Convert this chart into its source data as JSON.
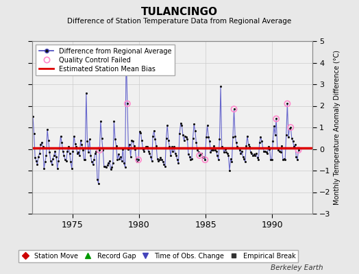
{
  "title": "TULANCINGO",
  "subtitle": "Difference of Station Temperature Data from Regional Average",
  "ylabel_right": "Monthly Temperature Anomaly Difference (°C)",
  "ylim": [
    -3,
    5
  ],
  "yticks": [
    -3,
    -2,
    -1,
    0,
    1,
    2,
    3,
    4,
    5
  ],
  "xlim_start": 1972.0,
  "xlim_end": 1993.0,
  "xticks": [
    1975,
    1980,
    1985,
    1990
  ],
  "bias_value": 0.05,
  "background_color": "#e8e8e8",
  "plot_bg_color": "#f0f0f0",
  "line_color": "#6666cc",
  "dot_color": "#111111",
  "bias_color": "#dd0000",
  "qc_color": "#ff88cc",
  "berkeley_earth_text": "Berkeley Earth",
  "legend1_items": [
    {
      "label": "Difference from Regional Average",
      "color": "#4444bb",
      "markercolor": "#111111"
    },
    {
      "label": "Quality Control Failed",
      "markercolor": "#ff88cc"
    },
    {
      "label": "Estimated Station Mean Bias",
      "color": "#dd0000"
    }
  ],
  "legend2_items": [
    {
      "label": "Station Move",
      "marker": "D",
      "color": "#cc0000"
    },
    {
      "label": "Record Gap",
      "marker": "^",
      "color": "#009900"
    },
    {
      "label": "Time of Obs. Change",
      "marker": "v",
      "color": "#4444bb"
    },
    {
      "label": "Empirical Break",
      "marker": "s",
      "color": "#333333"
    }
  ],
  "data": [
    [
      1972.042,
      1.5
    ],
    [
      1972.125,
      0.7
    ],
    [
      1972.208,
      -0.4
    ],
    [
      1972.292,
      -0.55
    ],
    [
      1972.375,
      -0.7
    ],
    [
      1972.458,
      -0.35
    ],
    [
      1972.542,
      -0.2
    ],
    [
      1972.625,
      0.2
    ],
    [
      1972.708,
      0.3
    ],
    [
      1972.792,
      0.1
    ],
    [
      1972.875,
      -0.9
    ],
    [
      1972.958,
      -0.6
    ],
    [
      1973.042,
      -0.3
    ],
    [
      1973.125,
      0.9
    ],
    [
      1973.208,
      0.4
    ],
    [
      1973.292,
      -0.15
    ],
    [
      1973.375,
      -0.55
    ],
    [
      1973.458,
      -0.7
    ],
    [
      1973.542,
      -0.45
    ],
    [
      1973.625,
      -0.3
    ],
    [
      1973.708,
      -0.1
    ],
    [
      1973.792,
      -0.35
    ],
    [
      1973.875,
      -0.9
    ],
    [
      1973.958,
      -0.55
    ],
    [
      1974.042,
      0.05
    ],
    [
      1974.125,
      0.6
    ],
    [
      1974.208,
      0.3
    ],
    [
      1974.292,
      -0.1
    ],
    [
      1974.375,
      -0.3
    ],
    [
      1974.458,
      -0.5
    ],
    [
      1974.542,
      -0.55
    ],
    [
      1974.625,
      -0.1
    ],
    [
      1974.708,
      0.1
    ],
    [
      1974.792,
      -0.2
    ],
    [
      1974.875,
      -0.6
    ],
    [
      1974.958,
      -0.9
    ],
    [
      1975.042,
      -0.1
    ],
    [
      1975.125,
      0.6
    ],
    [
      1975.208,
      0.25
    ],
    [
      1975.292,
      0.1
    ],
    [
      1975.375,
      -0.2
    ],
    [
      1975.458,
      -0.15
    ],
    [
      1975.542,
      -0.3
    ],
    [
      1975.625,
      0.4
    ],
    [
      1975.708,
      0.2
    ],
    [
      1975.792,
      -0.05
    ],
    [
      1975.875,
      -0.5
    ],
    [
      1975.958,
      -0.5
    ],
    [
      1976.042,
      2.6
    ],
    [
      1976.125,
      0.35
    ],
    [
      1976.208,
      -0.15
    ],
    [
      1976.292,
      0.45
    ],
    [
      1976.375,
      -0.3
    ],
    [
      1976.458,
      -0.6
    ],
    [
      1976.542,
      -0.7
    ],
    [
      1976.625,
      -0.5
    ],
    [
      1976.708,
      -0.2
    ],
    [
      1976.792,
      -0.1
    ],
    [
      1976.875,
      -1.4
    ],
    [
      1976.958,
      -1.6
    ],
    [
      1977.042,
      -0.05
    ],
    [
      1977.125,
      1.3
    ],
    [
      1977.208,
      0.5
    ],
    [
      1977.292,
      -0.05
    ],
    [
      1977.375,
      -0.8
    ],
    [
      1977.458,
      -0.8
    ],
    [
      1977.542,
      -0.85
    ],
    [
      1977.625,
      -0.75
    ],
    [
      1977.708,
      -0.65
    ],
    [
      1977.792,
      -0.55
    ],
    [
      1977.875,
      -0.95
    ],
    [
      1977.958,
      -0.85
    ],
    [
      1978.042,
      -0.65
    ],
    [
      1978.125,
      1.3
    ],
    [
      1978.208,
      0.45
    ],
    [
      1978.292,
      0.15
    ],
    [
      1978.375,
      -0.5
    ],
    [
      1978.458,
      -0.25
    ],
    [
      1978.542,
      -0.45
    ],
    [
      1978.625,
      -0.35
    ],
    [
      1978.708,
      -0.55
    ],
    [
      1978.792,
      0.0
    ],
    [
      1978.875,
      -0.65
    ],
    [
      1978.958,
      -0.85
    ],
    [
      1979.042,
      4.5
    ],
    [
      1979.125,
      2.1
    ],
    [
      1979.208,
      0.0
    ],
    [
      1979.292,
      0.2
    ],
    [
      1979.375,
      -0.35
    ],
    [
      1979.458,
      0.4
    ],
    [
      1979.542,
      0.35
    ],
    [
      1979.625,
      0.15
    ],
    [
      1979.708,
      0.0
    ],
    [
      1979.792,
      -0.45
    ],
    [
      1979.875,
      -0.6
    ],
    [
      1979.958,
      -0.5
    ],
    [
      1980.042,
      0.8
    ],
    [
      1980.125,
      0.75
    ],
    [
      1980.208,
      0.4
    ],
    [
      1980.292,
      0.0
    ],
    [
      1980.375,
      -0.1
    ],
    [
      1980.458,
      0.05
    ],
    [
      1980.542,
      0.1
    ],
    [
      1980.625,
      0.1
    ],
    [
      1980.708,
      -0.1
    ],
    [
      1980.792,
      -0.2
    ],
    [
      1980.875,
      -0.35
    ],
    [
      1980.958,
      -0.55
    ],
    [
      1981.042,
      0.6
    ],
    [
      1981.125,
      0.85
    ],
    [
      1981.208,
      0.45
    ],
    [
      1981.292,
      0.15
    ],
    [
      1981.375,
      -0.45
    ],
    [
      1981.458,
      -0.55
    ],
    [
      1981.542,
      -0.5
    ],
    [
      1981.625,
      -0.4
    ],
    [
      1981.708,
      -0.5
    ],
    [
      1981.792,
      -0.6
    ],
    [
      1981.875,
      -0.7
    ],
    [
      1981.958,
      -0.8
    ],
    [
      1982.042,
      0.5
    ],
    [
      1982.125,
      1.1
    ],
    [
      1982.208,
      0.4
    ],
    [
      1982.292,
      0.1
    ],
    [
      1982.375,
      -0.3
    ],
    [
      1982.458,
      0.1
    ],
    [
      1982.542,
      -0.1
    ],
    [
      1982.625,
      0.1
    ],
    [
      1982.708,
      -0.2
    ],
    [
      1982.792,
      -0.3
    ],
    [
      1982.875,
      -0.5
    ],
    [
      1982.958,
      -0.65
    ],
    [
      1983.042,
      0.7
    ],
    [
      1983.125,
      1.2
    ],
    [
      1983.208,
      1.1
    ],
    [
      1983.292,
      0.65
    ],
    [
      1983.375,
      0.4
    ],
    [
      1983.458,
      0.6
    ],
    [
      1983.542,
      0.55
    ],
    [
      1983.625,
      0.45
    ],
    [
      1983.708,
      -0.25
    ],
    [
      1983.792,
      -0.35
    ],
    [
      1983.875,
      -0.5
    ],
    [
      1983.958,
      -0.45
    ],
    [
      1984.042,
      0.5
    ],
    [
      1984.125,
      1.15
    ],
    [
      1984.208,
      0.85
    ],
    [
      1984.292,
      0.3
    ],
    [
      1984.375,
      -0.05
    ],
    [
      1984.458,
      -0.15
    ],
    [
      1984.542,
      -0.3
    ],
    [
      1984.625,
      -0.25
    ],
    [
      1984.708,
      -0.2
    ],
    [
      1984.792,
      -0.4
    ],
    [
      1984.875,
      -0.35
    ],
    [
      1984.958,
      -0.5
    ],
    [
      1985.042,
      0.55
    ],
    [
      1985.125,
      1.1
    ],
    [
      1985.208,
      0.55
    ],
    [
      1985.292,
      0.35
    ],
    [
      1985.375,
      -0.15
    ],
    [
      1985.458,
      -0.05
    ],
    [
      1985.542,
      -0.05
    ],
    [
      1985.625,
      0.15
    ],
    [
      1985.708,
      -0.05
    ],
    [
      1985.792,
      -0.1
    ],
    [
      1985.875,
      -0.3
    ],
    [
      1985.958,
      -0.5
    ],
    [
      1986.042,
      0.45
    ],
    [
      1986.125,
      2.9
    ],
    [
      1986.208,
      0.1
    ],
    [
      1986.292,
      0.05
    ],
    [
      1986.375,
      -0.15
    ],
    [
      1986.458,
      0.0
    ],
    [
      1986.542,
      -0.15
    ],
    [
      1986.625,
      -0.2
    ],
    [
      1986.708,
      -0.3
    ],
    [
      1986.792,
      -1.0
    ],
    [
      1986.875,
      -0.45
    ],
    [
      1986.958,
      -0.6
    ],
    [
      1987.042,
      0.55
    ],
    [
      1987.125,
      1.85
    ],
    [
      1987.208,
      0.6
    ],
    [
      1987.292,
      0.3
    ],
    [
      1987.375,
      0.1
    ],
    [
      1987.458,
      0.05
    ],
    [
      1987.542,
      -0.05
    ],
    [
      1987.625,
      -0.2
    ],
    [
      1987.708,
      -0.1
    ],
    [
      1987.792,
      -0.35
    ],
    [
      1987.875,
      -0.45
    ],
    [
      1987.958,
      -0.6
    ],
    [
      1988.042,
      0.15
    ],
    [
      1988.125,
      0.6
    ],
    [
      1988.208,
      0.2
    ],
    [
      1988.292,
      0.1
    ],
    [
      1988.375,
      -0.15
    ],
    [
      1988.458,
      -0.2
    ],
    [
      1988.542,
      -0.3
    ],
    [
      1988.625,
      -0.25
    ],
    [
      1988.708,
      -0.3
    ],
    [
      1988.792,
      -0.2
    ],
    [
      1988.875,
      -0.4
    ],
    [
      1988.958,
      -0.5
    ],
    [
      1989.042,
      0.3
    ],
    [
      1989.125,
      0.55
    ],
    [
      1989.208,
      0.35
    ],
    [
      1989.292,
      0.05
    ],
    [
      1989.375,
      -0.1
    ],
    [
      1989.458,
      -0.1
    ],
    [
      1989.542,
      -0.15
    ],
    [
      1989.625,
      -0.2
    ],
    [
      1989.708,
      0.1
    ],
    [
      1989.792,
      0.0
    ],
    [
      1989.875,
      -0.5
    ],
    [
      1989.958,
      -0.5
    ],
    [
      1990.042,
      0.35
    ],
    [
      1990.125,
      1.05
    ],
    [
      1990.208,
      0.65
    ],
    [
      1990.292,
      1.4
    ],
    [
      1990.375,
      0.05
    ],
    [
      1990.458,
      -0.05
    ],
    [
      1990.542,
      -0.1
    ],
    [
      1990.625,
      -0.15
    ],
    [
      1990.708,
      0.15
    ],
    [
      1990.792,
      -0.5
    ],
    [
      1990.875,
      -0.45
    ],
    [
      1990.958,
      -0.5
    ],
    [
      1991.042,
      0.65
    ],
    [
      1991.125,
      2.1
    ],
    [
      1991.208,
      0.55
    ],
    [
      1991.292,
      0.95
    ],
    [
      1991.375,
      1.0
    ],
    [
      1991.458,
      0.5
    ],
    [
      1991.542,
      0.35
    ],
    [
      1991.625,
      0.1
    ],
    [
      1991.708,
      0.2
    ],
    [
      1991.792,
      -0.35
    ],
    [
      1991.875,
      -0.5
    ],
    [
      1991.958,
      -0.05
    ]
  ],
  "qc_failed": [
    [
      1977.042,
      -0.05
    ],
    [
      1979.125,
      2.1
    ],
    [
      1979.958,
      -0.5
    ],
    [
      1984.542,
      -0.3
    ],
    [
      1984.958,
      -0.5
    ],
    [
      1987.125,
      1.85
    ],
    [
      1990.292,
      1.4
    ],
    [
      1991.125,
      2.1
    ],
    [
      1991.375,
      1.0
    ],
    [
      1991.958,
      -0.05
    ]
  ]
}
